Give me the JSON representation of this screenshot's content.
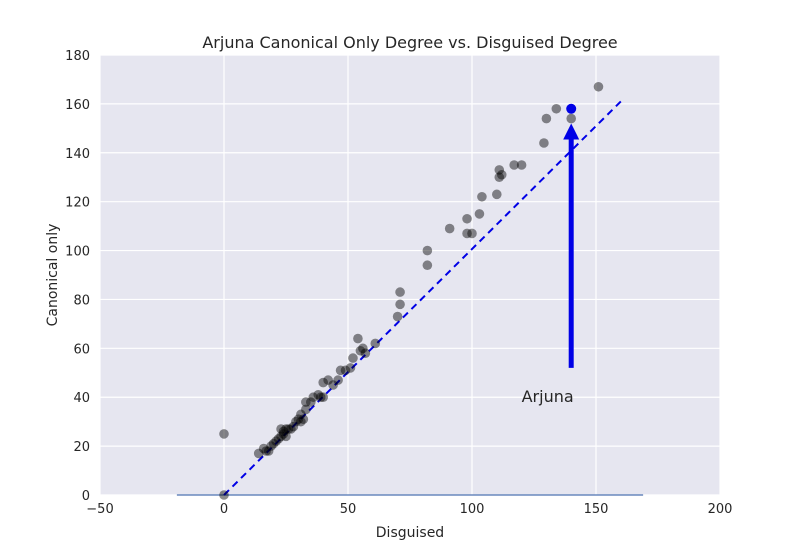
{
  "chart_data": {
    "type": "scatter",
    "title": "Arjuna Canonical Only Degree vs. Disguised Degree",
    "xlabel": "Disguised",
    "ylabel": "Canonical only",
    "xlim": [
      -50,
      200
    ],
    "ylim": [
      0,
      180
    ],
    "x_ticks": [
      "−50",
      "0",
      "50",
      "100",
      "150",
      "200"
    ],
    "y_ticks": [
      "0",
      "20",
      "40",
      "60",
      "80",
      "100",
      "120",
      "140",
      "160",
      "180"
    ],
    "x_tick_values": [
      -50,
      0,
      50,
      100,
      150,
      200
    ],
    "y_tick_values": [
      0,
      20,
      40,
      60,
      80,
      100,
      120,
      140,
      160,
      180
    ],
    "grid": true,
    "background": "#e6e6f0",
    "point_color": "#000000",
    "point_opacity": 0.45,
    "highlight_color": "#0000e6",
    "points": [
      [
        0,
        0
      ],
      [
        0,
        25
      ],
      [
        14,
        17
      ],
      [
        16,
        19
      ],
      [
        17,
        18
      ],
      [
        18,
        18
      ],
      [
        19,
        20
      ],
      [
        20,
        21
      ],
      [
        21,
        22
      ],
      [
        22,
        23
      ],
      [
        23,
        24
      ],
      [
        23,
        27
      ],
      [
        24,
        25
      ],
      [
        24,
        26
      ],
      [
        25,
        24
      ],
      [
        25,
        27
      ],
      [
        26,
        27
      ],
      [
        27,
        27
      ],
      [
        28,
        28
      ],
      [
        29,
        30
      ],
      [
        30,
        31
      ],
      [
        31,
        30
      ],
      [
        31,
        33
      ],
      [
        32,
        31
      ],
      [
        33,
        35
      ],
      [
        33,
        38
      ],
      [
        35,
        38
      ],
      [
        36,
        40
      ],
      [
        38,
        41
      ],
      [
        39,
        40
      ],
      [
        40,
        40
      ],
      [
        40,
        46
      ],
      [
        42,
        47
      ],
      [
        44,
        45
      ],
      [
        46,
        47
      ],
      [
        47,
        51
      ],
      [
        49,
        51
      ],
      [
        51,
        52
      ],
      [
        52,
        56
      ],
      [
        54,
        64
      ],
      [
        55,
        59
      ],
      [
        56,
        60
      ],
      [
        57,
        58
      ],
      [
        61,
        62
      ],
      [
        70,
        73
      ],
      [
        71,
        83
      ],
      [
        71,
        78
      ],
      [
        82,
        100
      ],
      [
        82,
        94
      ],
      [
        91,
        109
      ],
      [
        98,
        113
      ],
      [
        98,
        107
      ],
      [
        100,
        107
      ],
      [
        103,
        115
      ],
      [
        104,
        122
      ],
      [
        110,
        123
      ],
      [
        111,
        133
      ],
      [
        111,
        130
      ],
      [
        112,
        131
      ],
      [
        117,
        135
      ],
      [
        120,
        135
      ],
      [
        129,
        144
      ],
      [
        130,
        154
      ],
      [
        134,
        158
      ],
      [
        140,
        154
      ],
      [
        151,
        167
      ]
    ],
    "highlight_point": [
      140,
      158
    ],
    "reference_line": {
      "x": [
        0,
        160
      ],
      "y": [
        0,
        161
      ],
      "style": "dashed",
      "color": "#0000e6"
    },
    "baseline": {
      "x": [
        -19,
        169
      ],
      "y": 0,
      "color": "#4c72b0"
    },
    "annotation": {
      "text": "Arjuna",
      "point": [
        140,
        158
      ],
      "arrow_from": [
        140,
        52
      ],
      "arrow_to": [
        140,
        152
      ],
      "text_position": [
        120,
        40
      ],
      "color": "#0000e6"
    }
  }
}
